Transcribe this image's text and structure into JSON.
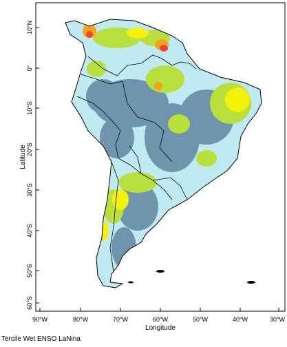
{
  "map": {
    "caption": "Tercile Wet ENSO LaNina",
    "xlabel": "Longitude",
    "ylabel": "Latitude",
    "lon_ticks": [
      "90°W",
      "80°W",
      "70°W",
      "60°W",
      "50°W",
      "40°W",
      "30°W"
    ],
    "lat_ticks": [
      "10°N",
      "0°",
      "10°S",
      "20°S",
      "30°S",
      "40°S",
      "50°S",
      "60°S"
    ],
    "lon_range": [
      -90,
      -30
    ],
    "lat_range": [
      -60,
      15
    ],
    "colors": {
      "ocean": "#ffffff",
      "light_blue": "#bfeaf2",
      "steel_blue": "#6f95ae",
      "yellow_green": "#b9df3d",
      "yellow": "#f6f10a",
      "orange": "#f5a21c",
      "red": "#e9492c",
      "border": "#000000"
    }
  }
}
